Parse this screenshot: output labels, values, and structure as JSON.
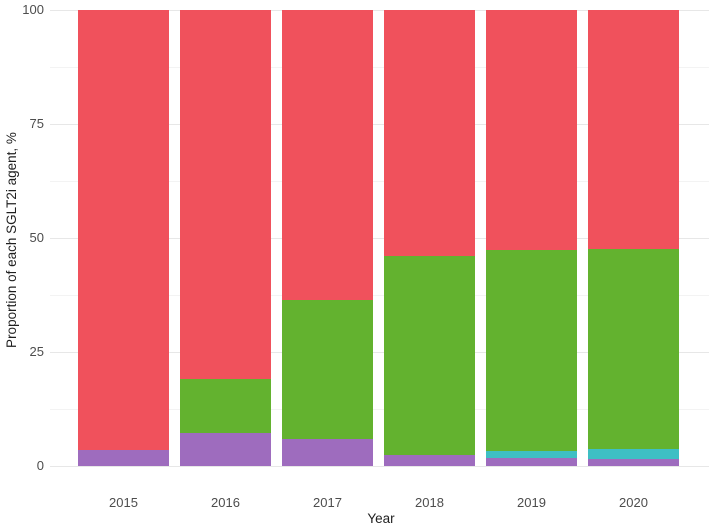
{
  "chart_data": {
    "type": "bar",
    "stacked": true,
    "title": "",
    "xlabel": "Year",
    "ylabel": "Proportion of each SGLT2i agent, %",
    "categories": [
      "2015",
      "2016",
      "2017",
      "2018",
      "2019",
      "2020"
    ],
    "series": [
      {
        "name": "purple-segment",
        "color": "#9e6cbe",
        "values": [
          3.5,
          7.2,
          6.0,
          2.5,
          1.8,
          1.5
        ]
      },
      {
        "name": "cyan-segment",
        "color": "#3ebfc4",
        "values": [
          0,
          0,
          0,
          0,
          1.5,
          2.2
        ]
      },
      {
        "name": "green-segment",
        "color": "#63b22f",
        "values": [
          0,
          11.8,
          30.5,
          43.5,
          44.1,
          44.0
        ]
      },
      {
        "name": "red-segment",
        "color": "#f0515c",
        "values": [
          96.5,
          81.0,
          63.5,
          54.0,
          52.6,
          52.3
        ]
      }
    ],
    "ylim": [
      0,
      100
    ],
    "y_ticks": [
      0,
      25,
      50,
      75,
      100
    ],
    "y_minor_ticks": [
      12.5,
      37.5,
      62.5,
      87.5
    ],
    "legend": "none",
    "grid": "horizontal major and minor gridlines on white background",
    "bar_gap_note": "white gaps between bars"
  }
}
